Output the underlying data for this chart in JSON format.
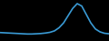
{
  "x": [
    0,
    1,
    2,
    3,
    4,
    5,
    6,
    7,
    8,
    9,
    10,
    11,
    12,
    13,
    14,
    15,
    16,
    17,
    18,
    19,
    20,
    21,
    22,
    23,
    24
  ],
  "y": [
    3.5,
    3.4,
    3.3,
    3.2,
    3.1,
    3.0,
    2.9,
    2.9,
    3.0,
    3.1,
    3.3,
    3.6,
    4.2,
    5.5,
    7.5,
    10.5,
    13.5,
    15.5,
    14.5,
    11.0,
    7.5,
    5.0,
    3.8,
    3.2,
    3.0
  ],
  "line_color": "#3a9ad4",
  "line_width": 1.2,
  "background_color": "#000000",
  "plot_bg_color": "#000000",
  "ylim": [
    0,
    17
  ],
  "xlim": [
    0,
    24
  ]
}
